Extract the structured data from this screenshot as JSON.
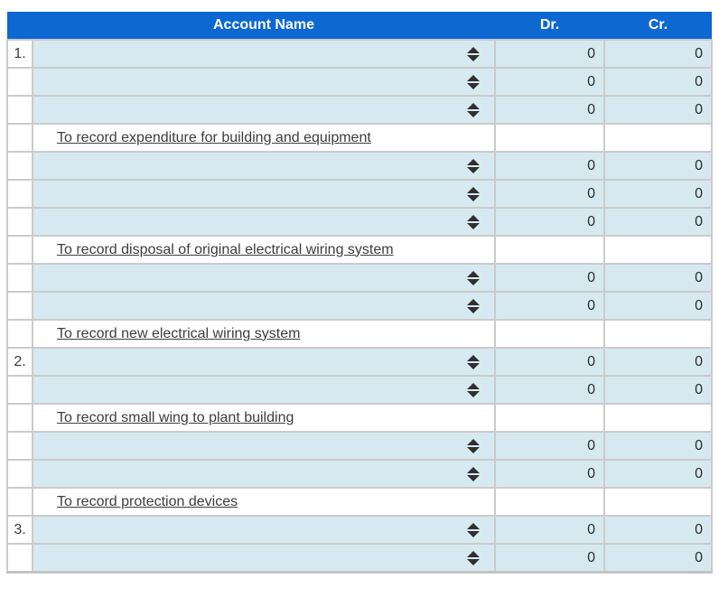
{
  "table": {
    "headers": {
      "number": "",
      "account": "Account Name",
      "dr": "Dr.",
      "cr": "Cr."
    },
    "colors": {
      "header_bg": "#0d68d2",
      "row_bg": "#d7e9f0",
      "border": "#cbcbcb",
      "border_dark": "#c3c3c3",
      "icon": "#2f2f2f"
    },
    "rows": [
      {
        "type": "select",
        "number": "1.",
        "dr": "0",
        "cr": "0"
      },
      {
        "type": "select",
        "number": "",
        "dr": "0",
        "cr": "0"
      },
      {
        "type": "select",
        "number": "",
        "dr": "0",
        "cr": "0"
      },
      {
        "type": "desc",
        "number": "",
        "text": "To record expenditure for building and equipment"
      },
      {
        "type": "select",
        "number": "",
        "dr": "0",
        "cr": "0"
      },
      {
        "type": "select",
        "number": "",
        "dr": "0",
        "cr": "0"
      },
      {
        "type": "select",
        "number": "",
        "dr": "0",
        "cr": "0"
      },
      {
        "type": "desc",
        "number": "",
        "text": "To record disposal of original electrical wiring system"
      },
      {
        "type": "select",
        "number": "",
        "dr": "0",
        "cr": "0"
      },
      {
        "type": "select",
        "number": "",
        "dr": "0",
        "cr": "0"
      },
      {
        "type": "desc",
        "number": "",
        "text": "To record new electrical wiring system"
      },
      {
        "type": "select",
        "number": "2.",
        "dr": "0",
        "cr": "0"
      },
      {
        "type": "select",
        "number": "",
        "dr": "0",
        "cr": "0"
      },
      {
        "type": "desc",
        "number": "",
        "text": "To record small wing to plant building"
      },
      {
        "type": "select",
        "number": "",
        "dr": "0",
        "cr": "0"
      },
      {
        "type": "select",
        "number": "",
        "dr": "0",
        "cr": "0"
      },
      {
        "type": "desc",
        "number": "",
        "text": "To record protection devices"
      },
      {
        "type": "select",
        "number": "3.",
        "dr": "0",
        "cr": "0"
      },
      {
        "type": "select",
        "number": "",
        "dr": "0",
        "cr": "0"
      }
    ]
  }
}
